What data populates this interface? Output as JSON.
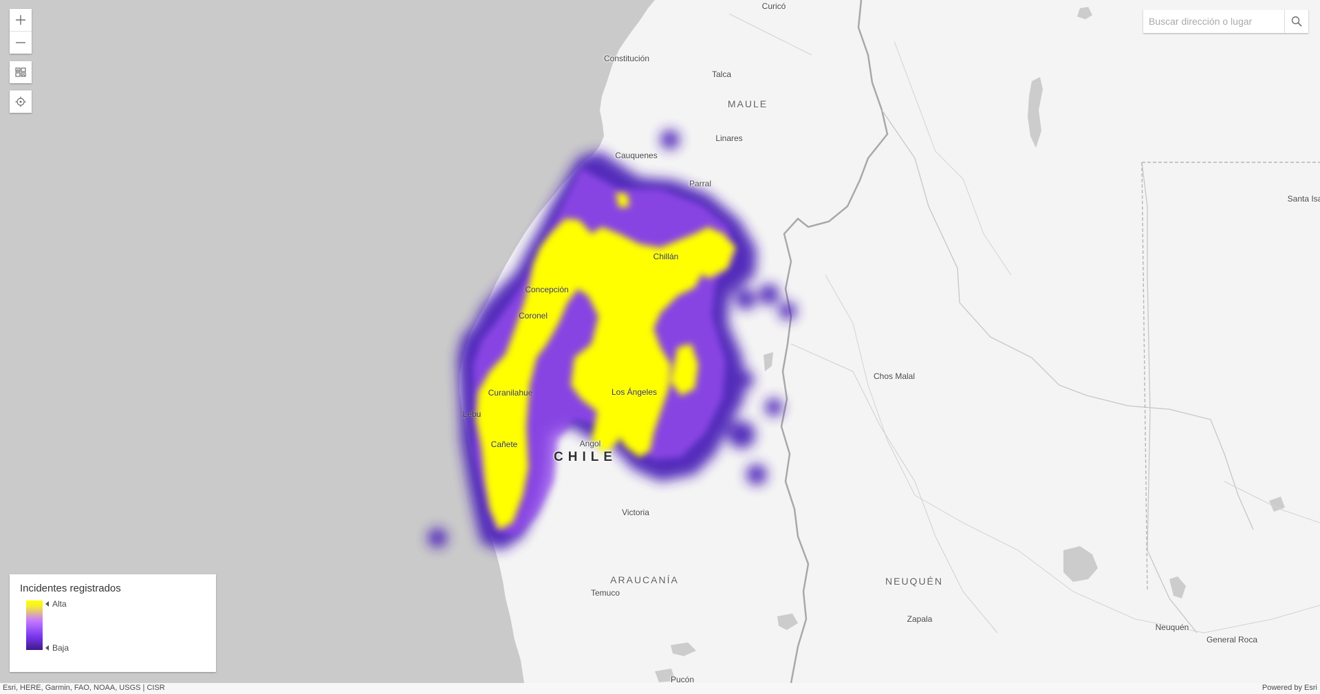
{
  "map": {
    "place_labels": [
      {
        "name": "Curicó",
        "type": "city"
      },
      {
        "name": "Constitución",
        "type": "city"
      },
      {
        "name": "Talca",
        "type": "city"
      },
      {
        "name": "MAULE",
        "type": "region"
      },
      {
        "name": "Linares",
        "type": "city"
      },
      {
        "name": "Cauquenes",
        "type": "city"
      },
      {
        "name": "Parral",
        "type": "city"
      },
      {
        "name": "Chillán",
        "type": "city"
      },
      {
        "name": "Concepción",
        "type": "city"
      },
      {
        "name": "Coronel",
        "type": "city"
      },
      {
        "name": "Curanilahue",
        "type": "city"
      },
      {
        "name": "Lebu",
        "type": "city"
      },
      {
        "name": "Los Ángeles",
        "type": "city"
      },
      {
        "name": "Cañete",
        "type": "city"
      },
      {
        "name": "Angol",
        "type": "city"
      },
      {
        "name": "CHILE",
        "type": "country"
      },
      {
        "name": "Victoria",
        "type": "city"
      },
      {
        "name": "ARAUCANÍA",
        "type": "region"
      },
      {
        "name": "Temuco",
        "type": "city"
      },
      {
        "name": "Pucón",
        "type": "city"
      },
      {
        "name": "Chos Malal",
        "type": "city"
      },
      {
        "name": "NEUQUÉN",
        "type": "region"
      },
      {
        "name": "Zapala",
        "type": "city"
      },
      {
        "name": "Neuquén",
        "type": "city"
      },
      {
        "name": "General Roca",
        "type": "city"
      },
      {
        "name": "Santa Isa",
        "type": "city"
      }
    ],
    "colors": {
      "ocean": "#cacaca",
      "land": "#f4f4f4",
      "heat_high": "#ffff00",
      "heat_mid": "#a55cff",
      "heat_low": "#4b21b8"
    }
  },
  "controls": {
    "zoom_in_icon": "plus-icon",
    "zoom_out_icon": "minus-icon",
    "basemap_icon": "basemap-gallery-icon",
    "locate_icon": "locate-crosshair-icon"
  },
  "search": {
    "placeholder": "Buscar dirección o lugar",
    "value": "",
    "icon": "search-icon"
  },
  "legend": {
    "title": "Incidentes registrados",
    "high_label": "Alta",
    "low_label": "Baja"
  },
  "attribution": {
    "text": "Esri, HERE, Garmin, FAO, NOAA, USGS | CISR",
    "powered_by": "Powered by Esri"
  }
}
